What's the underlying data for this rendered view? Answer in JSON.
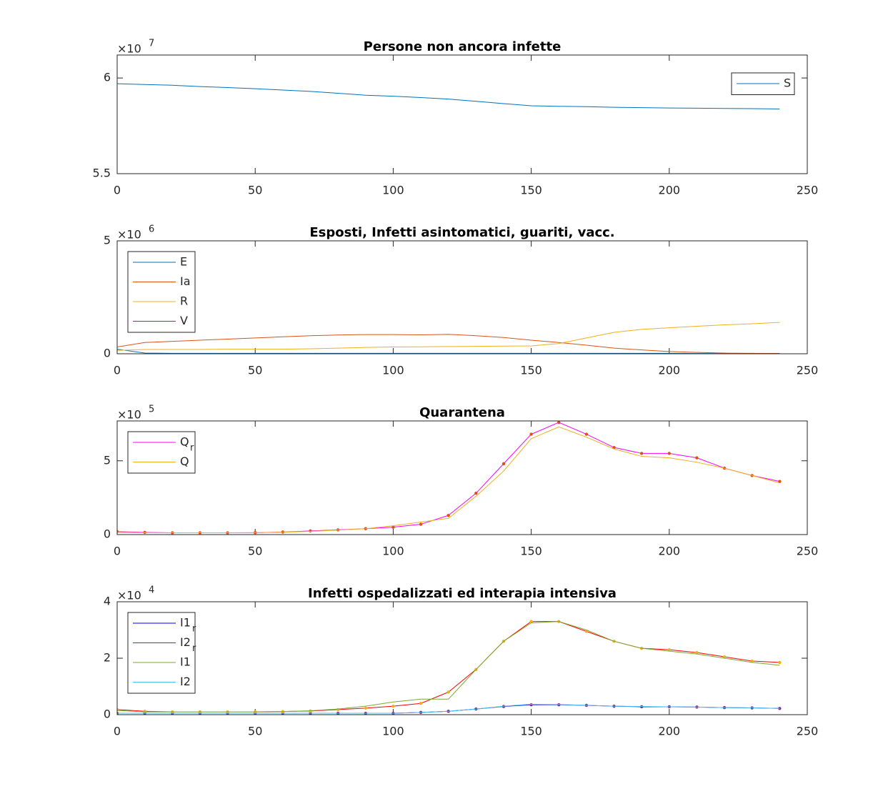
{
  "chart_data": [
    {
      "type": "line",
      "title": "Persone non ancora infette",
      "scale_label": {
        "base": "×10",
        "power": "7"
      },
      "x": [
        0,
        10,
        20,
        30,
        40,
        50,
        60,
        70,
        80,
        90,
        100,
        110,
        120,
        130,
        140,
        150,
        160,
        170,
        180,
        190,
        200,
        210,
        220,
        230,
        240
      ],
      "series": [
        {
          "name": "S",
          "color": "#0072bd",
          "values": [
            5.97,
            5.966,
            5.962,
            5.955,
            5.95,
            5.944,
            5.937,
            5.93,
            5.92,
            5.91,
            5.905,
            5.898,
            5.89,
            5.878,
            5.866,
            5.855,
            5.852,
            5.85,
            5.847,
            5.845,
            5.843,
            5.842,
            5.841,
            5.84,
            5.838
          ]
        }
      ],
      "xlim": [
        0,
        250
      ],
      "xticks": [
        0,
        50,
        100,
        150,
        200,
        250
      ],
      "ylim": [
        5.5,
        6.12
      ],
      "yticks": [
        5.5,
        6
      ],
      "legend": "northeast"
    },
    {
      "type": "line",
      "title": "Esposti, Infetti asintomatici, guariti, vacc.",
      "scale_label": {
        "base": "×10",
        "power": "6"
      },
      "x": [
        0,
        10,
        20,
        30,
        40,
        50,
        60,
        70,
        80,
        90,
        100,
        110,
        120,
        130,
        140,
        150,
        160,
        170,
        180,
        190,
        200,
        210,
        220,
        230,
        240
      ],
      "series": [
        {
          "name": "E",
          "color": "#0072bd",
          "values": [
            0.2,
            0.03,
            0.02,
            0.02,
            0.02,
            0.02,
            0.02,
            0.02,
            0.02,
            0.02,
            0.02,
            0.02,
            0.02,
            0.02,
            0.02,
            0.02,
            0.02,
            0.02,
            0.02,
            0.02,
            0.02,
            0.01,
            0.01,
            0.01,
            0.01
          ]
        },
        {
          "name": "Ia",
          "color": "#d95319",
          "values": [
            0.3,
            0.5,
            0.55,
            0.6,
            0.65,
            0.7,
            0.75,
            0.8,
            0.83,
            0.85,
            0.85,
            0.84,
            0.86,
            0.8,
            0.72,
            0.6,
            0.5,
            0.38,
            0.25,
            0.17,
            0.1,
            0.06,
            0.03,
            0.02,
            0.01
          ]
        },
        {
          "name": "R",
          "color": "#edb120",
          "values": [
            0.15,
            0.19,
            0.19,
            0.19,
            0.2,
            0.2,
            0.2,
            0.22,
            0.25,
            0.28,
            0.3,
            0.31,
            0.32,
            0.33,
            0.34,
            0.35,
            0.45,
            0.7,
            0.95,
            1.08,
            1.15,
            1.22,
            1.28,
            1.33,
            1.39
          ]
        },
        {
          "name": "V",
          "color": "#7e2f8e",
          "values": [
            0,
            0,
            0,
            0,
            0,
            0,
            0,
            0,
            0,
            0,
            0,
            0,
            0,
            0,
            0,
            0,
            0,
            0,
            0,
            0,
            0,
            0,
            0,
            0,
            0
          ]
        }
      ],
      "xlim": [
        0,
        250
      ],
      "xticks": [
        0,
        50,
        100,
        150,
        200,
        250
      ],
      "ylim": [
        0,
        5
      ],
      "yticks": [
        0,
        5
      ],
      "legend": "northwest"
    },
    {
      "type": "line",
      "title": "Quarantena",
      "scale_label": {
        "base": "×10",
        "power": "5"
      },
      "x": [
        0,
        10,
        20,
        30,
        40,
        50,
        60,
        70,
        80,
        90,
        100,
        110,
        120,
        130,
        140,
        150,
        160,
        170,
        180,
        190,
        200,
        210,
        220,
        230,
        240
      ],
      "series": [
        {
          "name": "Q",
          "name_sub": "r",
          "color": "#ff00ff",
          "marker_color": "#d95319",
          "values": [
            0.2,
            0.15,
            0.12,
            0.12,
            0.12,
            0.13,
            0.17,
            0.25,
            0.32,
            0.4,
            0.5,
            0.7,
            1.3,
            2.8,
            4.8,
            6.8,
            7.6,
            6.8,
            5.9,
            5.5,
            5.5,
            5.2,
            4.5,
            4.0,
            3.6
          ]
        },
        {
          "name": "Q",
          "color": "#edb120",
          "values": [
            0.15,
            0.13,
            0.12,
            0.12,
            0.12,
            0.13,
            0.16,
            0.22,
            0.3,
            0.4,
            0.6,
            0.85,
            1.1,
            2.6,
            4.3,
            6.5,
            7.3,
            6.6,
            5.8,
            5.3,
            5.2,
            4.9,
            4.5,
            4.0,
            3.5
          ]
        }
      ],
      "xlim": [
        0,
        250
      ],
      "xticks": [
        0,
        50,
        100,
        150,
        200,
        250
      ],
      "ylim": [
        0,
        7.7
      ],
      "yticks": [
        0,
        5
      ],
      "legend": "northwest"
    },
    {
      "type": "line",
      "title": "Infetti ospedalizzati ed interapia intensiva",
      "scale_label": {
        "base": "×10",
        "power": "4"
      },
      "x": [
        0,
        10,
        20,
        30,
        40,
        50,
        60,
        70,
        80,
        90,
        100,
        110,
        120,
        130,
        140,
        150,
        160,
        170,
        180,
        190,
        200,
        210,
        220,
        230,
        240
      ],
      "series": [
        {
          "name": "I1",
          "name_sub": "r",
          "color": "#0000ff",
          "marker_color": "#7e2f8e",
          "values": [
            0.05,
            0.05,
            0.05,
            0.05,
            0.05,
            0.05,
            0.05,
            0.05,
            0.05,
            0.05,
            0.05,
            0.08,
            0.12,
            0.2,
            0.29,
            0.35,
            0.35,
            0.33,
            0.3,
            0.28,
            0.28,
            0.27,
            0.25,
            0.24,
            0.22
          ]
        },
        {
          "name": "I2",
          "name_sub": "r",
          "color": "#ff0000",
          "marker_color": "#edb120",
          "values": [
            0.18,
            0.12,
            0.1,
            0.1,
            0.1,
            0.1,
            0.11,
            0.13,
            0.18,
            0.23,
            0.3,
            0.4,
            0.8,
            1.6,
            2.6,
            3.3,
            3.3,
            2.95,
            2.6,
            2.35,
            2.3,
            2.2,
            2.05,
            1.9,
            1.85
          ]
        },
        {
          "name": "I1",
          "color": "#77ac30",
          "values": [
            0.15,
            0.1,
            0.1,
            0.1,
            0.1,
            0.1,
            0.11,
            0.14,
            0.2,
            0.3,
            0.45,
            0.55,
            0.55,
            1.6,
            2.6,
            3.25,
            3.3,
            3.0,
            2.6,
            2.35,
            2.25,
            2.15,
            2.0,
            1.85,
            1.75
          ]
        },
        {
          "name": "I2",
          "color": "#4dbeee",
          "values": [
            0.05,
            0.05,
            0.05,
            0.05,
            0.05,
            0.05,
            0.05,
            0.05,
            0.05,
            0.05,
            0.05,
            0.08,
            0.12,
            0.2,
            0.3,
            0.37,
            0.36,
            0.33,
            0.3,
            0.29,
            0.28,
            0.27,
            0.25,
            0.24,
            0.22
          ]
        }
      ],
      "xlim": [
        0,
        250
      ],
      "xticks": [
        0,
        50,
        100,
        150,
        200,
        250
      ],
      "ylim": [
        0,
        4
      ],
      "yticks": [
        0,
        2,
        4
      ],
      "legend": "northwest"
    }
  ]
}
